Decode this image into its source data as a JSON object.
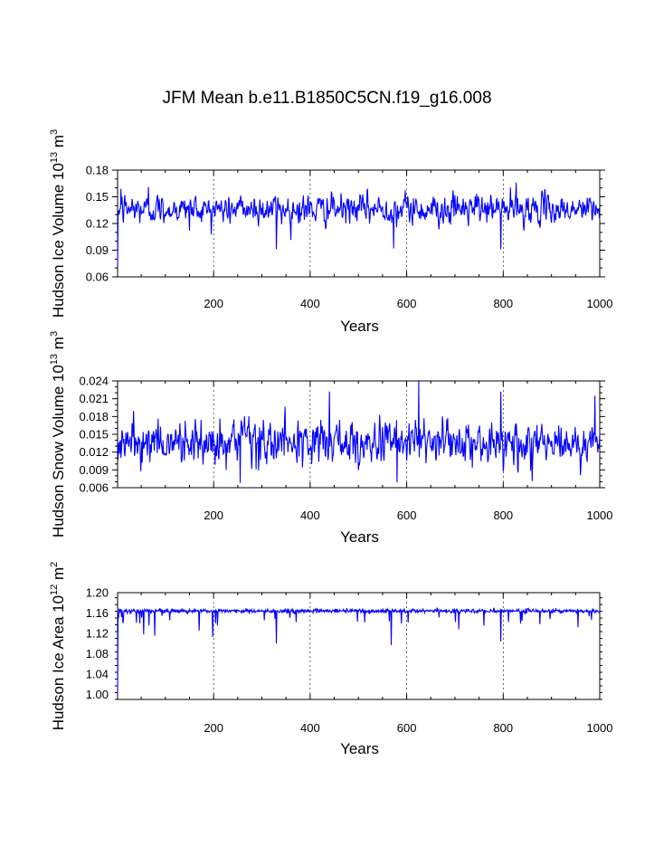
{
  "title": "JFM Mean b.e11.B1850C5CN.f19_g16.008",
  "series_color": "#0000ff",
  "chart_data": [
    {
      "type": "line",
      "ylabel": "Hudson Ice Volume 10",
      "ylabel_exp": "13",
      "ylabel_unit": " m",
      "ylabel_unit_exp": "3",
      "xlabel": "Years",
      "xlim": [
        1,
        1000
      ],
      "ylim": [
        0.06,
        0.18
      ],
      "yticks": [
        0.06,
        0.09,
        0.12,
        0.15,
        0.18
      ],
      "ytick_labels": [
        "0.06",
        "0.09",
        "0.12",
        "0.15",
        "0.18"
      ],
      "xticks": [
        200,
        400,
        600,
        800,
        1000
      ],
      "xtick_labels": [
        "200",
        "400",
        "600",
        "800",
        "1000"
      ],
      "grid_x": [
        200,
        400,
        600,
        800
      ],
      "series": {
        "mean": 0.136,
        "sd": 0.011,
        "values": [
          [
            1,
            0.072
          ],
          [
            2,
            0.128
          ],
          [
            150,
            0.112
          ],
          [
            330,
            0.091
          ],
          [
            573,
            0.092
          ],
          [
            795,
            0.091
          ],
          [
            827,
            0.166
          ],
          [
            8,
            0.159
          ],
          [
            65,
            0.161
          ]
        ]
      }
    },
    {
      "type": "line",
      "ylabel": "Hudson Snow Volume 10",
      "ylabel_exp": "13",
      "ylabel_unit": " m",
      "ylabel_unit_exp": "3",
      "xlabel": "Years",
      "xlim": [
        1,
        1000
      ],
      "ylim": [
        0.006,
        0.024
      ],
      "yticks": [
        0.006,
        0.009,
        0.012,
        0.015,
        0.018,
        0.021,
        0.024
      ],
      "ytick_labels": [
        "0.006",
        "0.009",
        "0.012",
        "0.015",
        "0.018",
        "0.021",
        "0.024"
      ],
      "xticks": [
        200,
        400,
        600,
        800,
        1000
      ],
      "xtick_labels": [
        "200",
        "400",
        "600",
        "800",
        "1000"
      ],
      "grid_x": [
        200,
        400,
        600,
        800
      ],
      "series": {
        "mean": 0.0135,
        "sd": 0.0025,
        "values": [
          [
            625,
            0.0242
          ],
          [
            440,
            0.0222
          ],
          [
            795,
            0.0222
          ],
          [
            990,
            0.0215
          ],
          [
            255,
            0.0068
          ],
          [
            580,
            0.0069
          ],
          [
            860,
            0.0071
          ]
        ]
      }
    },
    {
      "type": "line",
      "ylabel": "Hudson Ice Area 10",
      "ylabel_exp": "12",
      "ylabel_unit": " m",
      "ylabel_unit_exp": "2",
      "xlabel": "Years",
      "xlim": [
        1,
        1000
      ],
      "ylim": [
        0.99,
        1.2
      ],
      "yticks": [
        1.0,
        1.04,
        1.08,
        1.12,
        1.16,
        1.2
      ],
      "ytick_labels": [
        "1.00",
        "1.04",
        "1.08",
        "1.12",
        "1.16",
        "1.20"
      ],
      "xticks": [
        200,
        400,
        600,
        800,
        1000
      ],
      "xtick_labels": [
        "200",
        "400",
        "600",
        "800",
        "1000"
      ],
      "grid_x": [
        200,
        400,
        600,
        800
      ],
      "series": {
        "mean": 1.164,
        "sd": 0.002,
        "values": [
          [
            1,
            1.005
          ],
          [
            3,
            1.15
          ],
          [
            12,
            1.14
          ],
          [
            55,
            1.118
          ],
          [
            78,
            1.115
          ],
          [
            170,
            1.125
          ],
          [
            198,
            1.113
          ],
          [
            330,
            1.1
          ],
          [
            568,
            1.097
          ],
          [
            708,
            1.128
          ],
          [
            795,
            1.104
          ],
          [
            760,
            1.135
          ]
        ]
      }
    }
  ]
}
